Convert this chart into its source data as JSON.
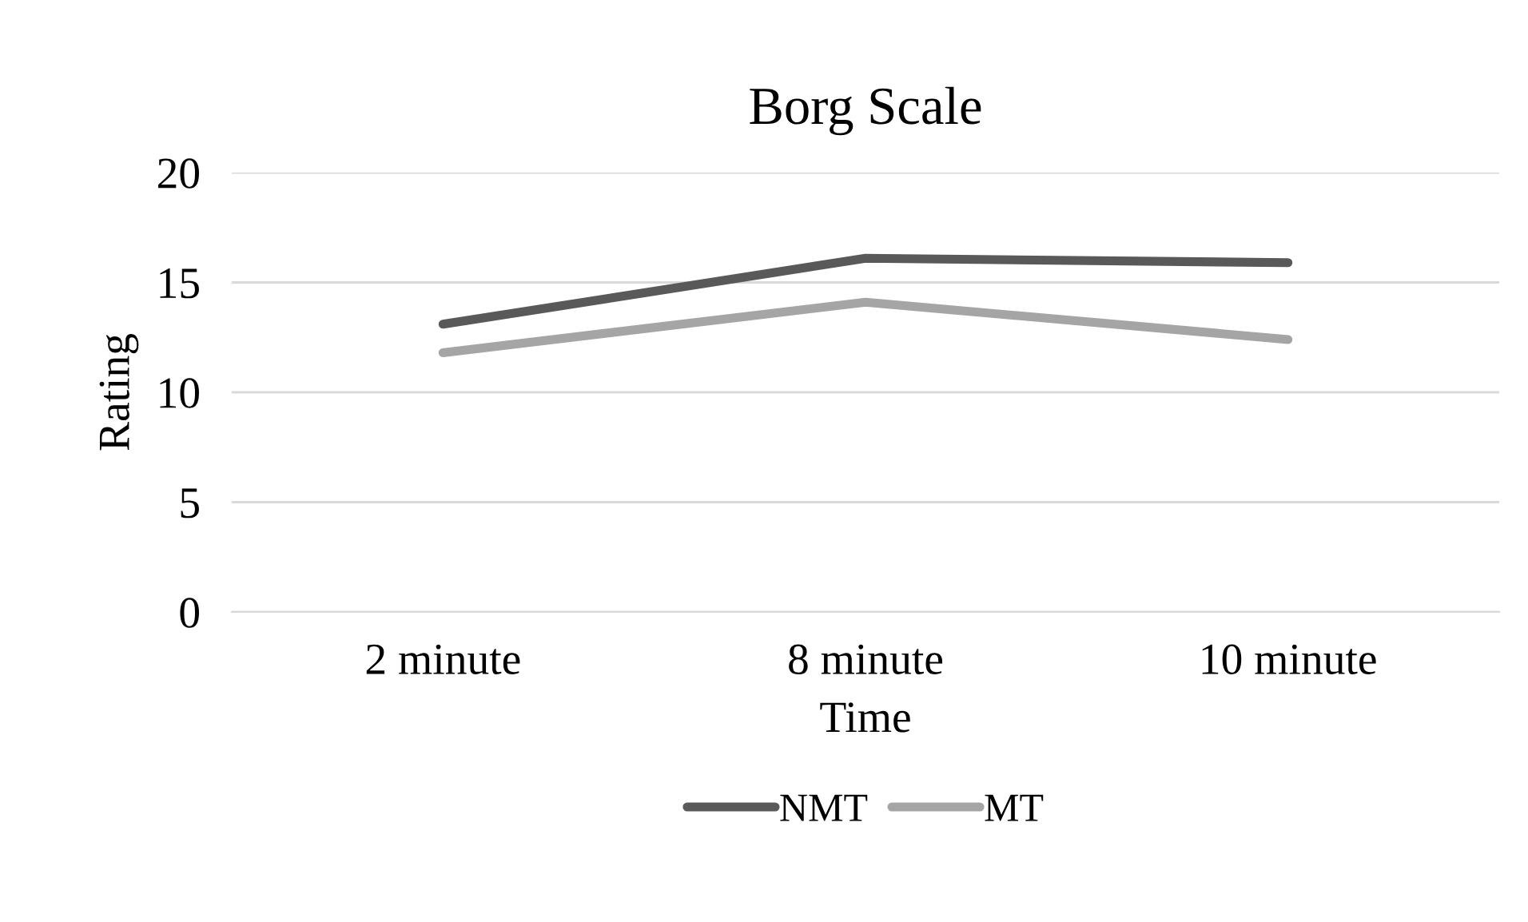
{
  "chart_data": {
    "type": "line",
    "title": "Borg Scale",
    "xlabel": "Time",
    "ylabel": "Rating",
    "categories": [
      "2 minute",
      "8 minute",
      "10 minute"
    ],
    "series": [
      {
        "name": "NMT",
        "color": "#595959",
        "values": [
          13.1,
          16.1,
          15.9
        ]
      },
      {
        "name": "MT",
        "color": "#a5a5a5",
        "values": [
          11.8,
          14.1,
          12.4
        ]
      }
    ],
    "ylim": [
      0,
      20
    ],
    "yticks": [
      0,
      5,
      10,
      15,
      20
    ],
    "grid": "y",
    "legend": "bottom",
    "marker": "none",
    "line_style": "solid"
  }
}
